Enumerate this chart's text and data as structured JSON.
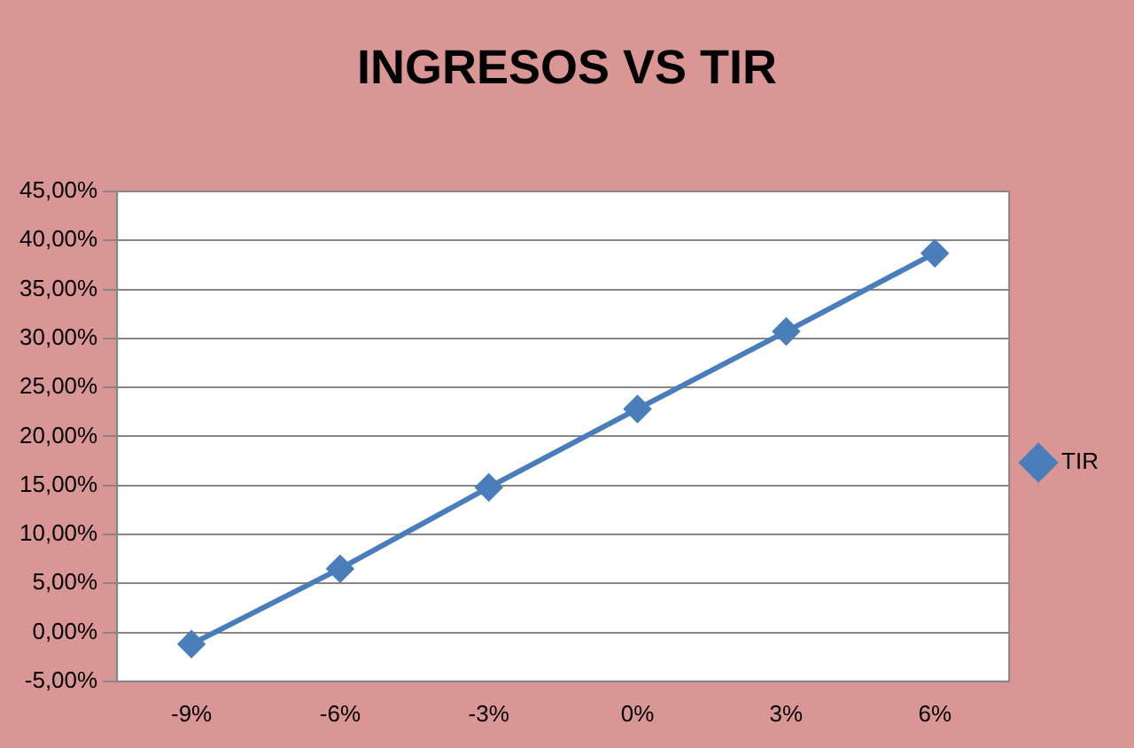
{
  "chart_data": {
    "type": "line",
    "title": "INGRESOS VS TIR",
    "categories": [
      "-9%",
      "-6%",
      "-3%",
      "0%",
      "3%",
      "6%"
    ],
    "series": [
      {
        "name": "TIR",
        "color": "#4a7ebb",
        "values": [
          -1.2,
          6.5,
          14.8,
          22.8,
          30.7,
          38.7
        ]
      }
    ],
    "ylim": [
      -5,
      45
    ],
    "yticks": [
      {
        "value": -5,
        "label": "-5,00%"
      },
      {
        "value": 0,
        "label": "0,00%"
      },
      {
        "value": 5,
        "label": "5,00%"
      },
      {
        "value": 10,
        "label": "10,00%"
      },
      {
        "value": 15,
        "label": "15,00%"
      },
      {
        "value": 20,
        "label": "20,00%"
      },
      {
        "value": 25,
        "label": "25,00%"
      },
      {
        "value": 30,
        "label": "30,00%"
      },
      {
        "value": 35,
        "label": "35,00%"
      },
      {
        "value": 40,
        "label": "40,00%"
      },
      {
        "value": 45,
        "label": "45,00%"
      }
    ],
    "grid": "y",
    "legend": "right",
    "marker": "diamond",
    "line_style": "solid"
  }
}
